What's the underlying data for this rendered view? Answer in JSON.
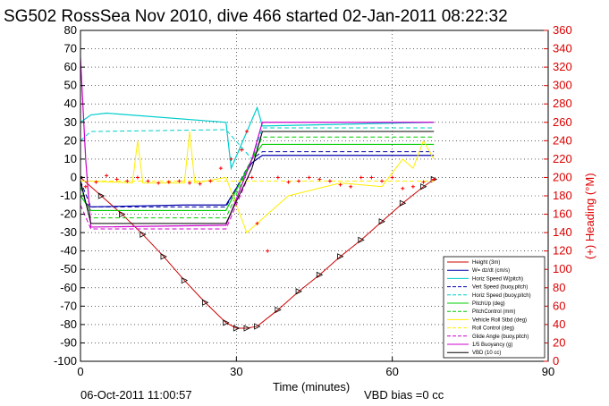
{
  "chart_data": {
    "type": "line",
    "title": "SG502 RossSea Nov 2010, dive 466 started 02-Jan-2011 08:22:32",
    "xlabel": "Time (minutes)",
    "ylabel_right": "(+) Heading (°M)",
    "footer_left": "06-Oct-2011 11:00:57",
    "footer_right": "VBD bias =0 cc",
    "xlim": [
      0,
      90
    ],
    "ylim": [
      -100,
      80
    ],
    "y2lim": [
      0,
      360
    ],
    "grid": true,
    "legend_position": "bottom-right",
    "xticks": [
      "0",
      "30",
      "60",
      "90"
    ],
    "yticks": [
      "-100",
      "-90",
      "-80",
      "-70",
      "-60",
      "-50",
      "-40",
      "-30",
      "-20",
      "-10",
      "0",
      "10",
      "20",
      "30",
      "40",
      "50",
      "60",
      "70",
      "80"
    ],
    "y2ticks": [
      "0",
      "20",
      "40",
      "60",
      "80",
      "100",
      "120",
      "140",
      "160",
      "180",
      "200",
      "220",
      "240",
      "260",
      "280",
      "300",
      "320",
      "340",
      "360"
    ],
    "colors": {
      "depth": "#cc0000",
      "vert_speed": "#0000aa",
      "horiz_speed": "#00cccc",
      "pitch": "#00cc00",
      "roll": "#ffee00",
      "buoyancy": "#cc00cc",
      "vbd": "#000000",
      "heading": "#ff0000",
      "right_axis": "#dd0000"
    },
    "legend": [
      {
        "label": "Height (3m)",
        "color": "#cc0000",
        "dash": "solid"
      },
      {
        "label": "W= dz/dt (cm/s)",
        "color": "#0000aa",
        "dash": "solid"
      },
      {
        "label": "Horiz Speed W(pitch)",
        "color": "#00cccc",
        "dash": "solid"
      },
      {
        "label": "Vert Speed (buoy,pitch)",
        "color": "#0000aa",
        "dash": "dashed"
      },
      {
        "label": "Horiz Speed (buoy,pitch)",
        "color": "#00cccc",
        "dash": "dashed"
      },
      {
        "label": "PitchUp (deg)",
        "color": "#00cc00",
        "dash": "solid"
      },
      {
        "label": "PitchControl (mm)",
        "color": "#00cc00",
        "dash": "dashed"
      },
      {
        "label": "Vehicle Roll Stbd (deg)",
        "color": "#ffee00",
        "dash": "solid"
      },
      {
        "label": "Roll Control (deg)",
        "color": "#ffee00",
        "dash": "dashed"
      },
      {
        "label": "Glide Angle (buoy,pitch)",
        "color": "#cc00cc",
        "dash": "dashed"
      },
      {
        "label": "1/5 Buoyancy (g)",
        "color": "#cc00cc",
        "dash": "solid"
      },
      {
        "label": "VBD (10 cc)",
        "color": "#000000",
        "dash": "solid"
      }
    ],
    "series": [
      {
        "key": "depth",
        "x": [
          0,
          4,
          8,
          12,
          16,
          20,
          24,
          28,
          30,
          32,
          34,
          38,
          42,
          46,
          50,
          54,
          58,
          62,
          66,
          68
        ],
        "values": [
          0,
          -10,
          -20,
          -31,
          -43,
          -56,
          -68,
          -79,
          -82,
          -82,
          -81,
          -72,
          -62,
          -53,
          -43,
          -34,
          -24,
          -14,
          -5,
          -1
        ]
      },
      {
        "key": "vert_speed",
        "x": [
          0,
          1,
          2,
          20,
          28,
          33,
          35,
          68
        ],
        "values": [
          -2,
          -14,
          -16,
          -15,
          -15,
          8,
          12,
          12
        ]
      },
      {
        "key": "vert_speed_model",
        "x": [
          0,
          2,
          28,
          33,
          35,
          68
        ],
        "values": [
          -2,
          -16,
          -16,
          10,
          14,
          14
        ]
      },
      {
        "key": "horiz_speed",
        "x": [
          0,
          2,
          5,
          28,
          29,
          34,
          35,
          68
        ],
        "values": [
          30,
          34,
          35,
          30,
          5,
          38,
          28,
          30
        ]
      },
      {
        "key": "horiz_speed_model",
        "x": [
          0,
          2,
          28,
          33,
          35,
          68
        ],
        "values": [
          20,
          25,
          26,
          10,
          27,
          27
        ]
      },
      {
        "key": "pitch",
        "x": [
          0,
          2,
          28,
          33,
          35,
          68
        ],
        "values": [
          -10,
          -18,
          -18,
          10,
          18,
          18
        ]
      },
      {
        "key": "pitch_control",
        "x": [
          0,
          2,
          28,
          33,
          35,
          68
        ],
        "values": [
          -5,
          -22,
          -22,
          10,
          22,
          22
        ]
      },
      {
        "key": "roll",
        "x": [
          0,
          2,
          10,
          11,
          12,
          20,
          21,
          22,
          28,
          32,
          34,
          36,
          40,
          50,
          58,
          62,
          64,
          66,
          68
        ],
        "values": [
          -2,
          -2,
          -3,
          20,
          -3,
          -3,
          25,
          -3,
          0,
          -30,
          -25,
          -20,
          -10,
          -3,
          -5,
          10,
          5,
          20,
          10
        ]
      },
      {
        "key": "roll_control",
        "x": [
          0,
          68
        ],
        "values": [
          -2,
          -2
        ]
      },
      {
        "key": "glide_angle",
        "x": [
          0,
          2,
          28,
          33,
          35,
          68
        ],
        "values": [
          -15,
          -28,
          -28,
          5,
          25,
          25
        ]
      },
      {
        "key": "buoyancy",
        "x": [
          0,
          1,
          2,
          28,
          33,
          35,
          68
        ],
        "values": [
          65,
          10,
          -27,
          -26,
          10,
          30,
          30
        ]
      },
      {
        "key": "vbd",
        "x": [
          0,
          2,
          28,
          33,
          35,
          68
        ],
        "values": [
          -2,
          -25,
          -25,
          5,
          25,
          25
        ]
      },
      {
        "key": "heading",
        "axis": "y2",
        "x": [
          0,
          1,
          3,
          5,
          7,
          9,
          11,
          13,
          15,
          17,
          19,
          21,
          23,
          25,
          27,
          29,
          31,
          32,
          33,
          34,
          36,
          38,
          40,
          42,
          44,
          46,
          48,
          50,
          52,
          54,
          56,
          58,
          60,
          62,
          64,
          66,
          68
        ],
        "values": [
          200,
          190,
          195,
          202,
          198,
          196,
          200,
          196,
          194,
          195,
          196,
          194,
          193,
          196,
          210,
          220,
          230,
          250,
          200,
          150,
          120,
          200,
          195,
          196,
          200,
          198,
          196,
          192,
          190,
          200,
          200,
          196,
          200,
          188,
          190,
          195,
          198
        ]
      }
    ]
  }
}
